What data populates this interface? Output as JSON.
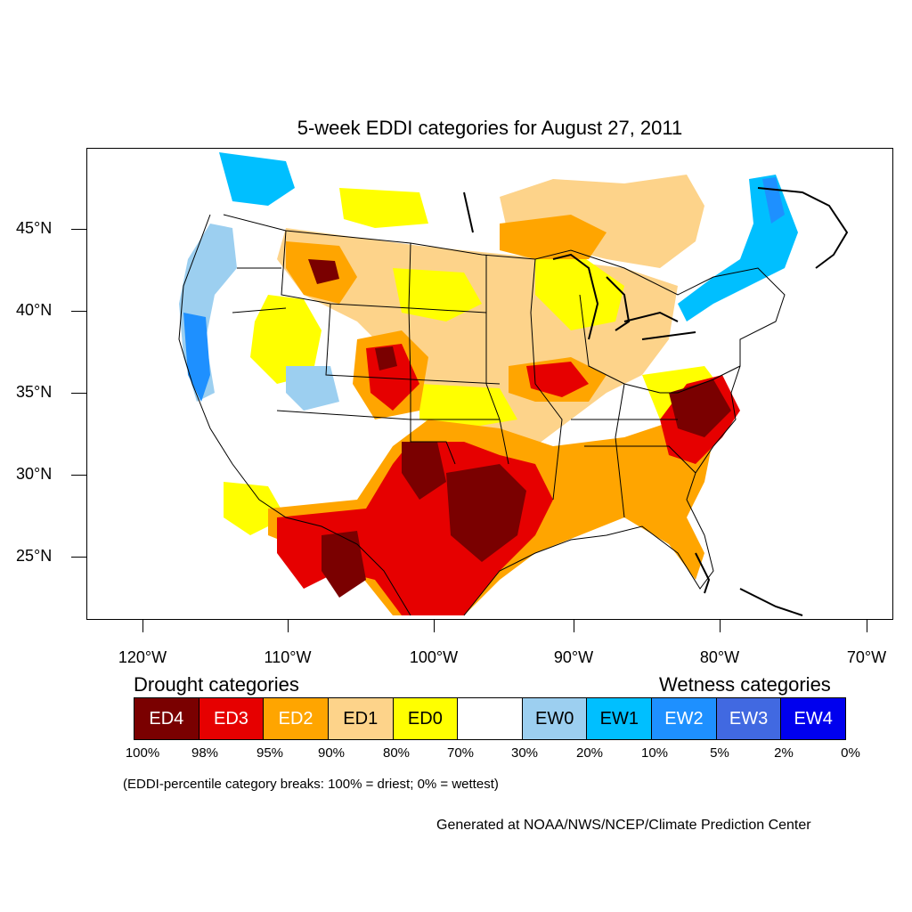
{
  "title": "5-week EDDI categories for August 27, 2011",
  "latitude_labels": [
    "45°N",
    "40°N",
    "35°N",
    "30°N",
    "25°N"
  ],
  "longitude_labels": [
    "120°W",
    "110°W",
    "100°W",
    "90°W",
    "80°W",
    "70°W"
  ],
  "legend": {
    "drought_heading": "Drought categories",
    "wetness_heading": "Wetness categories",
    "categories": [
      {
        "label": "ED4",
        "color": "#7a0000",
        "text_color": "#ffffff"
      },
      {
        "label": "ED3",
        "color": "#e60000",
        "text_color": "#ffffff"
      },
      {
        "label": "ED2",
        "color": "#ffa500",
        "text_color": "#ffffff"
      },
      {
        "label": "ED1",
        "color": "#fdd38a",
        "text_color": "#000000"
      },
      {
        "label": "ED0",
        "color": "#ffff00",
        "text_color": "#000000"
      },
      {
        "label": "",
        "color": "#ffffff",
        "text_color": "#000000"
      },
      {
        "label": "EW0",
        "color": "#9ccff0",
        "text_color": "#000000"
      },
      {
        "label": "EW1",
        "color": "#00bfff",
        "text_color": "#000000"
      },
      {
        "label": "EW2",
        "color": "#1e90ff",
        "text_color": "#ffffff"
      },
      {
        "label": "EW3",
        "color": "#4169e1",
        "text_color": "#ffffff"
      },
      {
        "label": "EW4",
        "color": "#0000ee",
        "text_color": "#ffffff"
      }
    ],
    "percentiles": [
      "100%",
      "98%",
      "95%",
      "90%",
      "80%",
      "70%",
      "30%",
      "20%",
      "10%",
      "5%",
      "2%",
      "0%"
    ]
  },
  "note": "(EDDI-percentile category breaks: 100% = driest; 0% = wettest)",
  "credit": "Generated at NOAA/NWS/NCEP/Climate Prediction Center"
}
